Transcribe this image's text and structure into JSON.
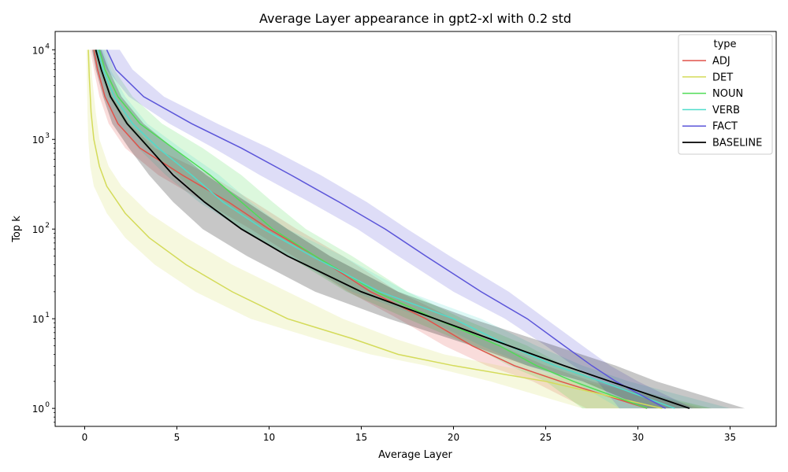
{
  "chart_data": {
    "type": "line",
    "title": "Average Layer appearance in gpt2-xl with 0.2 std",
    "xlabel": "Average Layer",
    "ylabel": "Top k",
    "y_scale": "log",
    "xlim": [
      -1.6,
      37.5
    ],
    "ylim": [
      0.63,
      16000
    ],
    "x_ticks": [
      0,
      5,
      10,
      15,
      20,
      25,
      30,
      35
    ],
    "x_tick_labels": [
      "0",
      "5",
      "10",
      "15",
      "20",
      "25",
      "30",
      "35"
    ],
    "y_ticks": [
      1,
      10,
      100,
      1000,
      10000
    ],
    "y_tick_labels": [
      "10",
      "10",
      "10",
      "10",
      "10"
    ],
    "y_tick_exponents": [
      "0",
      "1",
      "2",
      "3",
      "4"
    ],
    "legend": {
      "title": "type",
      "position": "top-right"
    },
    "series": [
      {
        "name": "ADJ",
        "color": "#e0524a",
        "k": [
          10000,
          6000,
          3000,
          1500,
          800,
          400,
          200,
          100,
          50,
          20,
          10,
          5,
          3,
          2,
          1
        ],
        "x": [
          0.5,
          0.7,
          1.1,
          1.8,
          3.0,
          5.3,
          7.8,
          10.0,
          12.5,
          15.5,
          18.5,
          21.0,
          23.3,
          25.8,
          30.5
        ],
        "lower": [
          0.3,
          0.5,
          0.8,
          1.3,
          2.2,
          4.0,
          6.5,
          9.0,
          11.3,
          14.3,
          17.0,
          19.5,
          21.8,
          24.3,
          27.2
        ],
        "upper": [
          0.7,
          0.9,
          1.5,
          2.4,
          3.8,
          6.8,
          9.2,
          11.5,
          14.0,
          17.0,
          20.0,
          22.5,
          25.0,
          27.5,
          33.5
        ]
      },
      {
        "name": "DET",
        "color": "#d4db5a",
        "k": [
          10000,
          5000,
          2000,
          1000,
          500,
          300,
          150,
          80,
          40,
          20,
          10,
          6,
          4,
          3,
          2,
          1
        ],
        "x": [
          0.2,
          0.25,
          0.35,
          0.5,
          0.8,
          1.2,
          2.2,
          3.5,
          5.5,
          8.0,
          11.0,
          14.5,
          17.0,
          20.0,
          25.0,
          31.3
        ],
        "lower": [
          0.1,
          0.12,
          0.15,
          0.2,
          0.3,
          0.5,
          1.2,
          2.2,
          3.8,
          6.0,
          9.0,
          12.5,
          15.5,
          18.5,
          22.0,
          27.0
        ],
        "upper": [
          0.3,
          0.4,
          0.6,
          0.8,
          1.3,
          2.0,
          3.5,
          5.5,
          8.0,
          11.0,
          14.0,
          16.8,
          19.5,
          22.5,
          27.0,
          34.0
        ]
      },
      {
        "name": "NOUN",
        "color": "#4fdc56",
        "k": [
          10000,
          6000,
          3000,
          1500,
          800,
          400,
          200,
          100,
          50,
          20,
          10,
          5,
          3,
          2,
          1
        ],
        "x": [
          0.8,
          1.1,
          1.8,
          3.0,
          4.8,
          6.8,
          8.5,
          10.2,
          12.5,
          15.8,
          19.0,
          22.5,
          24.5,
          26.5,
          30.5
        ],
        "lower": [
          0.5,
          0.8,
          1.3,
          2.2,
          3.4,
          5.0,
          6.5,
          8.5,
          11.0,
          14.2,
          17.5,
          21.0,
          23.0,
          25.0,
          27.0
        ],
        "upper": [
          1.2,
          1.6,
          2.6,
          4.2,
          6.4,
          8.5,
          10.2,
          12.0,
          14.5,
          17.5,
          20.5,
          24.0,
          26.0,
          28.0,
          34.0
        ]
      },
      {
        "name": "VERB",
        "color": "#4fdccb",
        "k": [
          10000,
          6000,
          3000,
          1500,
          800,
          400,
          200,
          100,
          50,
          20,
          10,
          5,
          3,
          2,
          1
        ],
        "x": [
          0.7,
          1.0,
          1.6,
          2.6,
          4.0,
          5.8,
          7.5,
          9.7,
          12.3,
          16.0,
          20.0,
          23.0,
          25.5,
          28.0,
          32.0
        ],
        "lower": [
          0.4,
          0.7,
          1.1,
          1.8,
          2.9,
          4.4,
          6.2,
          8.5,
          11.0,
          14.5,
          18.5,
          21.5,
          24.0,
          26.5,
          29.0
        ],
        "upper": [
          1.0,
          1.4,
          2.2,
          3.4,
          5.2,
          7.3,
          9.0,
          11.0,
          14.0,
          17.5,
          21.5,
          24.5,
          27.0,
          29.5,
          35.0
        ]
      },
      {
        "name": "FACT",
        "color": "#5b55d9",
        "k": [
          10000,
          6000,
          3000,
          1500,
          800,
          400,
          200,
          100,
          50,
          20,
          10,
          5,
          3,
          2,
          1
        ],
        "x": [
          1.2,
          1.7,
          3.2,
          5.8,
          8.5,
          11.2,
          13.8,
          16.3,
          18.5,
          21.5,
          24.0,
          26.0,
          27.5,
          28.8,
          31.5
        ],
        "lower": [
          0.7,
          1.2,
          2.4,
          4.6,
          7.0,
          9.5,
          12.2,
          14.8,
          17.0,
          20.0,
          22.8,
          25.0,
          26.5,
          27.8,
          29.0
        ],
        "upper": [
          1.9,
          2.6,
          4.3,
          7.2,
          10.0,
          12.8,
          15.3,
          17.5,
          19.8,
          23.0,
          25.0,
          27.0,
          28.5,
          30.0,
          33.0
        ]
      },
      {
        "name": "BASELINE",
        "color": "#000000",
        "k": [
          10000,
          6000,
          3000,
          1500,
          800,
          400,
          200,
          100,
          50,
          20,
          10,
          5,
          3,
          2,
          1
        ],
        "x": [
          0.6,
          0.9,
          1.4,
          2.3,
          3.5,
          4.8,
          6.5,
          8.5,
          11.0,
          15.0,
          19.0,
          23.0,
          26.0,
          28.5,
          32.8
        ],
        "lower": [
          0.4,
          0.6,
          1.0,
          1.5,
          2.4,
          3.5,
          4.8,
          6.4,
          8.8,
          12.5,
          16.5,
          21.0,
          24.0,
          27.0,
          30.5
        ],
        "upper": [
          0.9,
          1.3,
          2.0,
          3.2,
          4.8,
          6.6,
          8.8,
          11.0,
          13.3,
          17.0,
          21.0,
          25.5,
          28.8,
          31.0,
          35.8
        ]
      }
    ]
  }
}
